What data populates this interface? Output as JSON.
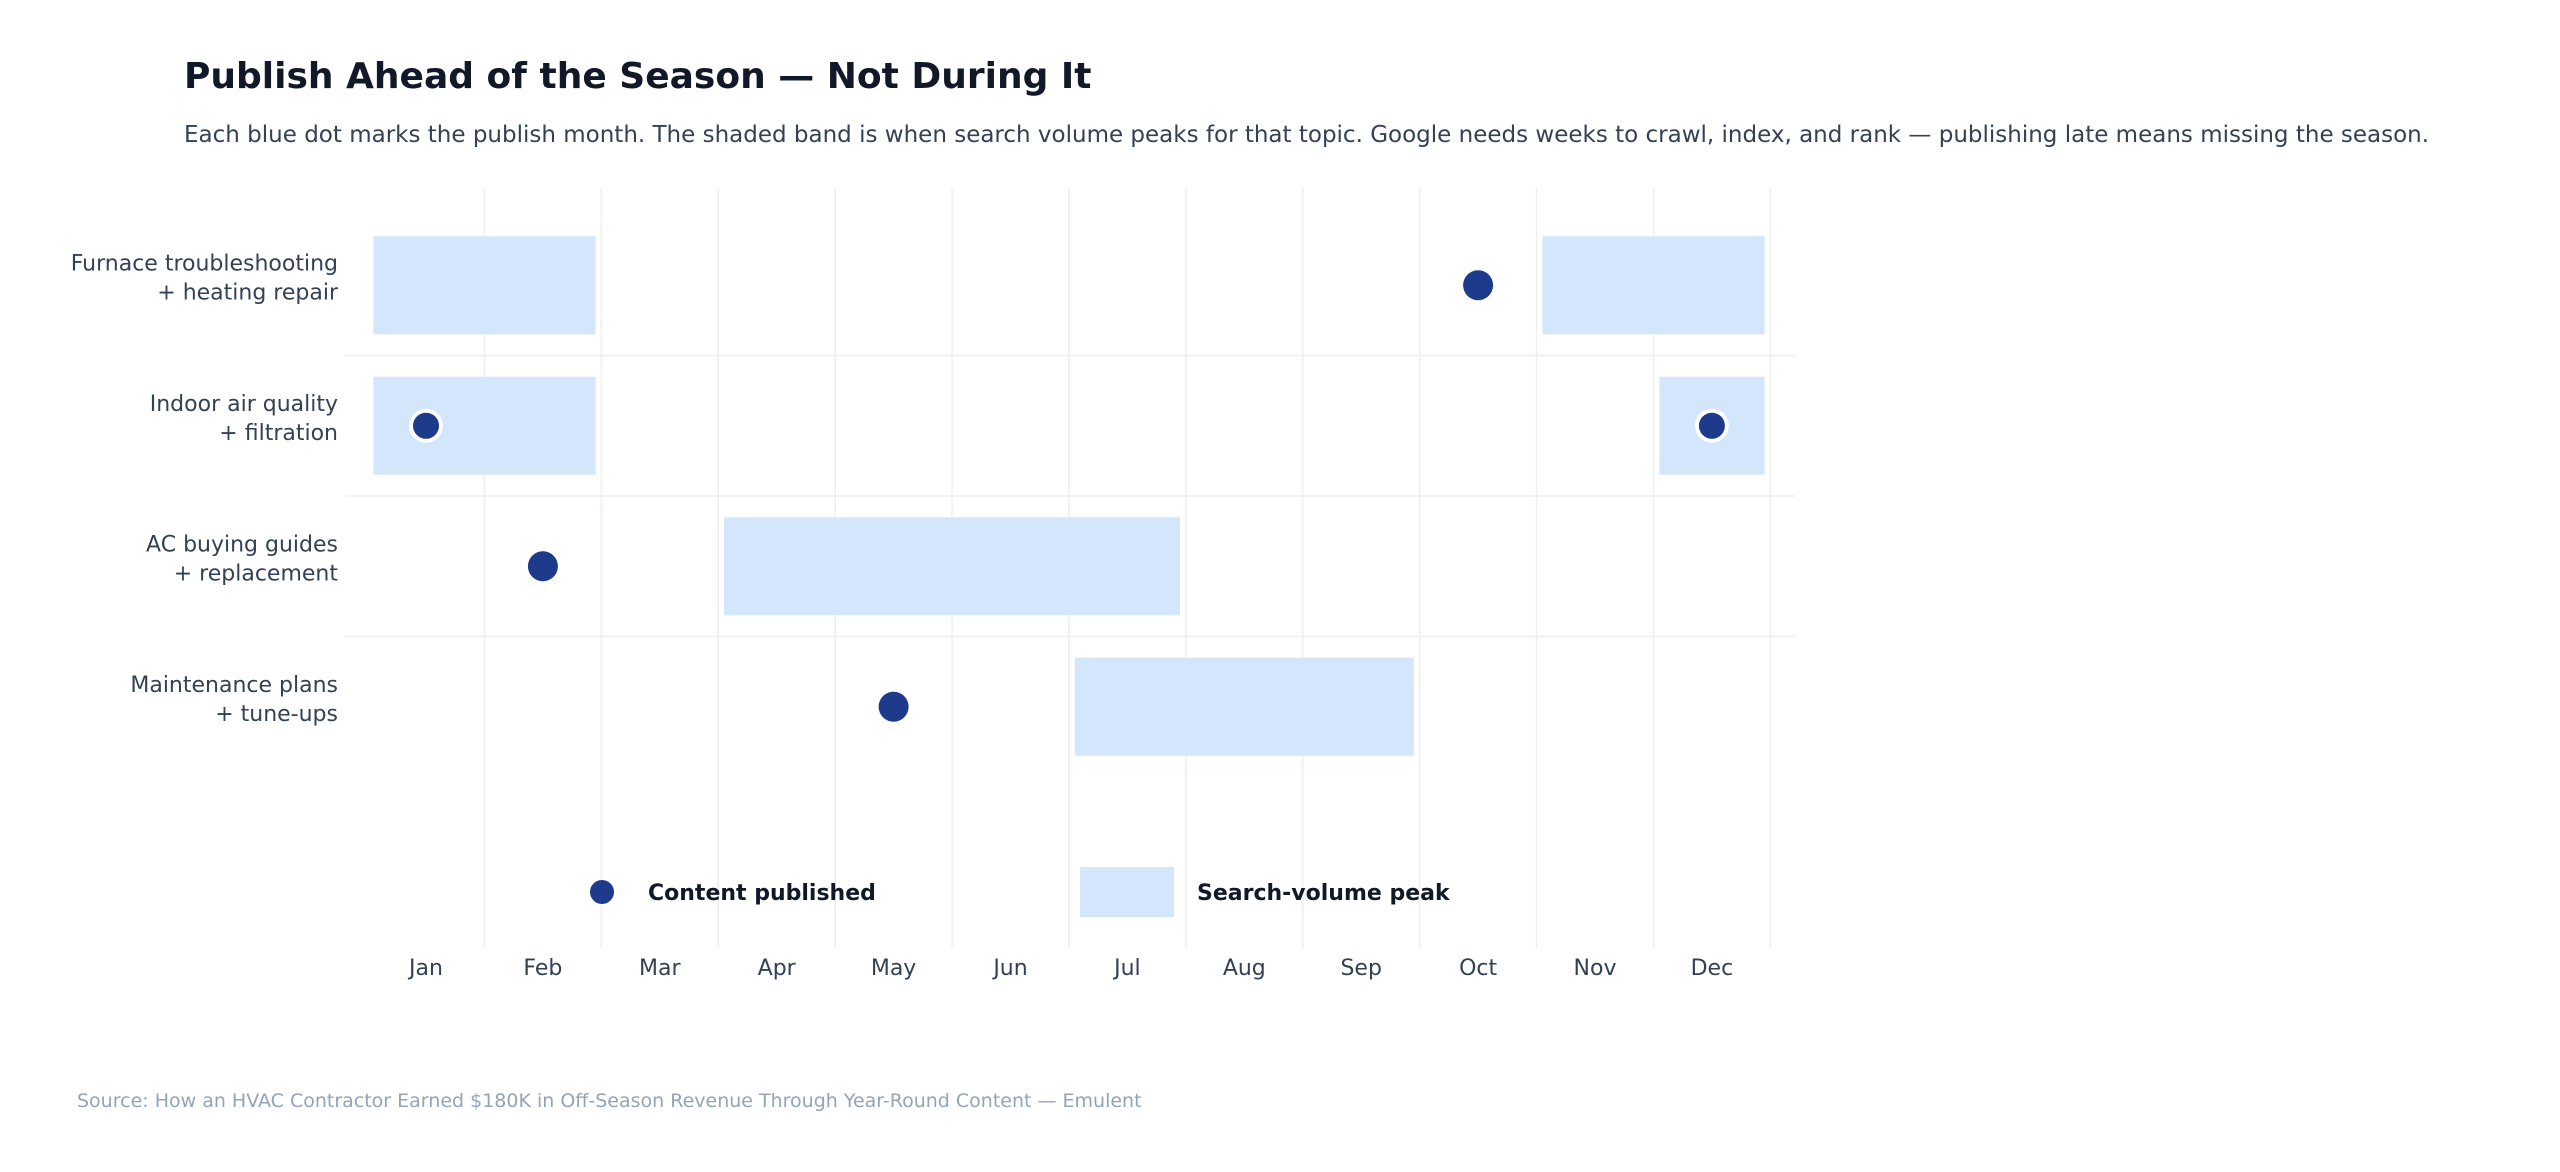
{
  "title": "Publish Ahead of the Season — Not During It",
  "subtitle": "Each blue dot marks the publish month. The shaded band is when search volume peaks for that topic. Google needs weeks to crawl, index, and rank — publishing late means missing the season.",
  "source": "Source: How an HVAC Contractor Earned $180K in Off-Season Revenue Through Year-Round Content — Emulent",
  "colors": {
    "dot": "#1e3a8a",
    "band": "#d4e6fc",
    "grid": "#eceef2",
    "text": "#334155",
    "title": "#111827"
  },
  "chart_data": {
    "type": "timeline",
    "x_axis": {
      "labels": [
        "Jan",
        "Feb",
        "Mar",
        "Apr",
        "May",
        "Jun",
        "Jul",
        "Aug",
        "Sep",
        "Oct",
        "Nov",
        "Dec"
      ],
      "range": [
        1,
        12
      ]
    },
    "rows": [
      {
        "label": [
          "Furnace troubleshooting",
          "+ heating repair"
        ],
        "publish": [
          10
        ],
        "peaks": [
          [
            0.55,
            2.45
          ],
          [
            10.55,
            12.45
          ]
        ]
      },
      {
        "label": [
          "Indoor air quality",
          "+ filtration"
        ],
        "publish": [
          1,
          12
        ],
        "peaks": [
          [
            0.55,
            2.45
          ],
          [
            11.55,
            12.45
          ]
        ]
      },
      {
        "label": [
          "AC buying guides",
          "+ replacement"
        ],
        "publish": [
          2
        ],
        "peaks": [
          [
            3.55,
            7.45
          ]
        ]
      },
      {
        "label": [
          "Maintenance plans",
          "+ tune-ups"
        ],
        "publish": [
          5
        ],
        "peaks": [
          [
            6.55,
            9.45
          ]
        ]
      }
    ],
    "legend": {
      "placement": "bottom",
      "items": [
        {
          "name": "Content published",
          "kind": "dot"
        },
        {
          "name": "Search-volume peak",
          "kind": "band"
        }
      ]
    }
  }
}
